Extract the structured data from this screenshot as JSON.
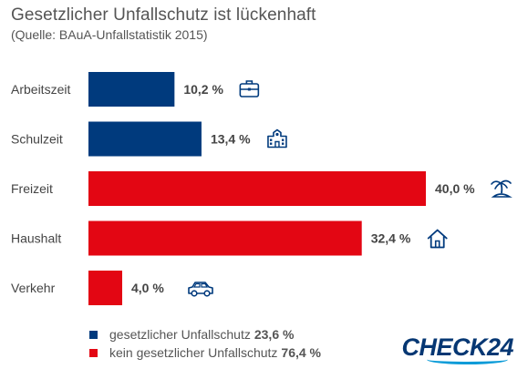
{
  "header": {
    "title": "Gesetzlicher Unfallschutz ist lückenhaft",
    "subtitle": "(Quelle: BAuA-Unfallstatistik 2015)"
  },
  "colors": {
    "covered": "#003a7d",
    "not_covered": "#e30613",
    "text": "#444444"
  },
  "chart_data": {
    "type": "bar",
    "orientation": "horizontal",
    "categories": [
      "Arbeitszeit",
      "Schulzeit",
      "Freizeit",
      "Haushalt",
      "Verkehr"
    ],
    "values": [
      10.2,
      13.4,
      40.0,
      32.4,
      4.0
    ],
    "value_labels": [
      "10,2 %",
      "13,4 %",
      "40,0 %",
      "32,4 %",
      "4,0 %"
    ],
    "bar_groups": [
      "covered",
      "covered",
      "not_covered",
      "not_covered",
      "not_covered"
    ],
    "icons": [
      "briefcase-icon",
      "school-icon",
      "island-icon",
      "house-icon",
      "car-icon"
    ],
    "xlim": [
      0,
      40
    ],
    "grid": false
  },
  "legend": {
    "items": [
      {
        "label": "gesetzlicher Unfallschutz",
        "value": "23,6 %",
        "color": "#003a7d"
      },
      {
        "label": "kein gesetzlicher Unfallschutz",
        "value": "76,4 %",
        "color": "#e30613"
      }
    ]
  },
  "brand": {
    "logo_text": "CHECK24"
  }
}
